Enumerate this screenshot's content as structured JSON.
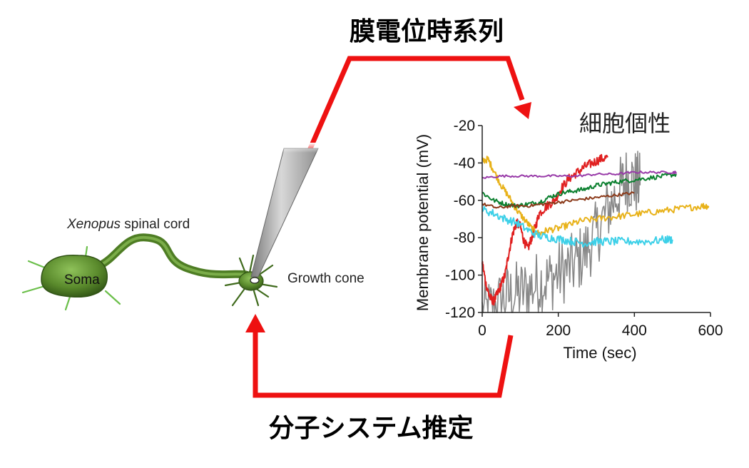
{
  "labels": {
    "top": "膜電位時系列",
    "bottom": "分子システム推定",
    "individuality": "細胞個性",
    "cord_italic": "Xenopus",
    "cord_rest": " spinal cord",
    "soma": "Soma",
    "growth_cone": "Growth cone"
  },
  "colors": {
    "arrow": "#ee1111",
    "neuron": "#5a8a2c",
    "neuron_light": "#8fc25a",
    "neuron_dark": "#2f5214"
  },
  "chart_data": {
    "type": "line",
    "xlabel": "Time (sec)",
    "ylabel": "Membrane potential (mV)",
    "xlim": [
      0,
      600
    ],
    "ylim": [
      -120,
      -20
    ],
    "xticks": [
      "0",
      "200",
      "400",
      "600"
    ],
    "yticks": [
      "-20",
      "-40",
      "-60",
      "-80",
      "-100",
      "-120"
    ],
    "series": [
      {
        "color": "#888888",
        "noise": 18,
        "x": [
          0,
          30,
          60,
          90,
          120,
          150,
          180,
          210,
          240,
          270,
          300,
          330,
          360,
          380,
          400,
          415
        ],
        "y": [
          -120,
          -118,
          -112,
          -110,
          -108,
          -104,
          -102,
          -98,
          -95,
          -88,
          -78,
          -65,
          -55,
          -48,
          -50,
          -52
        ]
      },
      {
        "color": "#e02020",
        "noise": 2.5,
        "x": [
          0,
          10,
          20,
          30,
          40,
          50,
          60,
          70,
          80,
          90,
          100,
          110,
          120,
          130,
          140,
          150,
          170,
          190,
          210,
          230,
          250,
          270,
          290,
          310,
          330
        ],
        "y": [
          -93,
          -105,
          -112,
          -114,
          -110,
          -105,
          -100,
          -88,
          -78,
          -72,
          -74,
          -82,
          -86,
          -80,
          -74,
          -67,
          -63,
          -60,
          -53,
          -48,
          -45,
          -42,
          -40,
          -38,
          -37
        ]
      },
      {
        "color": "#e8b21a",
        "noise": 1.8,
        "x": [
          0,
          15,
          30,
          50,
          70,
          90,
          110,
          130,
          150,
          170,
          200,
          230,
          260,
          300,
          340,
          380,
          420,
          460,
          500,
          540,
          580,
          595
        ],
        "y": [
          -39,
          -38,
          -44,
          -52,
          -58,
          -65,
          -70,
          -75,
          -78,
          -76,
          -75,
          -73,
          -71,
          -70,
          -69,
          -68,
          -67,
          -66,
          -65,
          -64,
          -63,
          -63
        ]
      },
      {
        "color": "#0a7f2e",
        "noise": 1.2,
        "x": [
          0,
          30,
          60,
          90,
          120,
          150,
          180,
          210,
          240,
          270,
          300,
          330,
          360,
          400,
          440,
          480,
          510
        ],
        "y": [
          -56,
          -60,
          -62,
          -63,
          -62,
          -61,
          -58,
          -56,
          -55,
          -54,
          -52,
          -51,
          -50,
          -49,
          -48,
          -47,
          -46
        ]
      },
      {
        "color": "#8b3a1a",
        "noise": 0.8,
        "x": [
          0,
          40,
          80,
          120,
          160,
          200,
          240,
          280,
          320,
          360,
          400
        ],
        "y": [
          -62,
          -64,
          -63,
          -63,
          -62,
          -61,
          -60,
          -59,
          -58,
          -57,
          -56
        ]
      },
      {
        "color": "#983aa8",
        "noise": 0.6,
        "x": [
          0,
          50,
          100,
          150,
          200,
          250,
          300,
          350,
          400,
          450,
          500,
          510
        ],
        "y": [
          -48,
          -47,
          -47,
          -47,
          -47,
          -47,
          -46,
          -46,
          -45,
          -45,
          -45,
          -45
        ]
      },
      {
        "color": "#3dd0e8",
        "noise": 2.2,
        "x": [
          0,
          30,
          60,
          90,
          120,
          150,
          180,
          210,
          240,
          270,
          300,
          330,
          360,
          400,
          440,
          480,
          500
        ],
        "y": [
          -65,
          -67,
          -70,
          -72,
          -76,
          -79,
          -80,
          -81,
          -82,
          -83,
          -82,
          -82,
          -82,
          -82,
          -82,
          -81,
          -81
        ]
      }
    ]
  }
}
